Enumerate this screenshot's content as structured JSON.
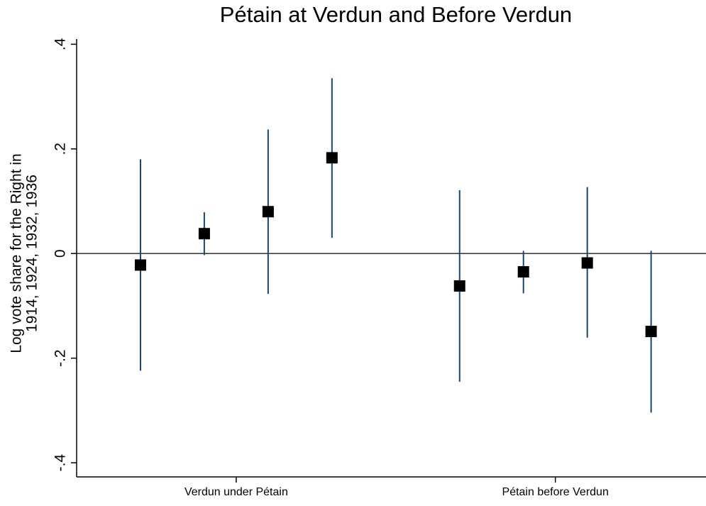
{
  "chart_data": {
    "type": "errorbar",
    "title": "Pétain at Verdun and Before Verdun",
    "ylabel": [
      "Log vote share for the Right in",
      "1914, 1924, 1932, 1936"
    ],
    "x": [
      1,
      2,
      3,
      4,
      6,
      7,
      8,
      9
    ],
    "values": [
      -0.022,
      0.038,
      0.08,
      0.183,
      -0.062,
      -0.035,
      -0.018,
      -0.149
    ],
    "lower": [
      -0.224,
      -0.003,
      -0.077,
      0.03,
      -0.245,
      -0.076,
      -0.161,
      -0.304
    ],
    "upper": [
      0.18,
      0.079,
      0.237,
      0.335,
      0.121,
      0.005,
      0.127,
      0.005
    ],
    "marker_color": "#000000",
    "bar_color": "#1a476f",
    "xlim": [
      0,
      9.86
    ],
    "ylim": [
      -0.427,
      0.41
    ],
    "xticks": [
      {
        "value": 2.5,
        "label": "Verdun under Pétain"
      },
      {
        "value": 7.5,
        "label": "Pétain before Verdun"
      }
    ],
    "yticks": [
      {
        "value": -0.4,
        "label": "-.4"
      },
      {
        "value": -0.2,
        "label": "-.2"
      },
      0,
      {
        "value": 0.2,
        "label": ".2"
      },
      {
        "value": 0.4,
        "label": ".4"
      }
    ],
    "yline": 0
  }
}
